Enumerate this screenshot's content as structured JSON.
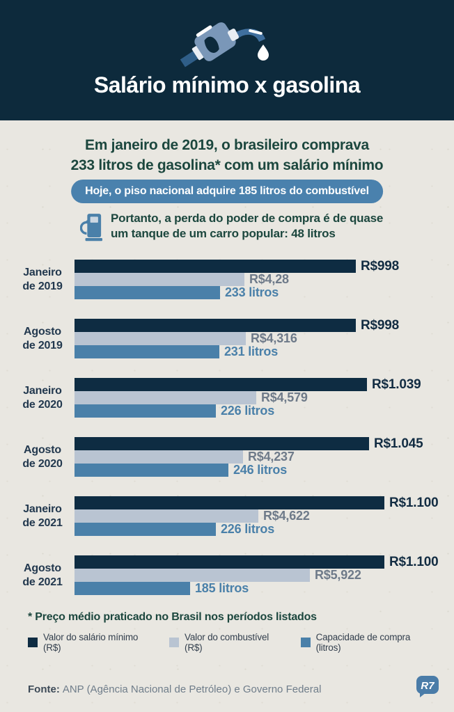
{
  "header": {
    "title": "Salário mínimo x gasolina",
    "icon": "fuel-nozzle-icon"
  },
  "intro": {
    "headline_line1": "Em janeiro de 2019, o brasileiro comprava",
    "headline_line2": "233 litros de gasolina* com um salário mínimo",
    "badge": "Hoje, o piso nacional adquire 185 litros do combustível",
    "note_line1": "Portanto, a perda do poder de compra é de quase",
    "note_line2": "um tanque de um carro popular: 48 litros"
  },
  "chart_data": {
    "type": "bar",
    "orientation": "horizontal",
    "categories": [
      "Janeiro de 2019",
      "Agosto de 2019",
      "Janeiro de 2020",
      "Agosto de 2020",
      "Janeiro de 2021",
      "Agosto de 2021"
    ],
    "category_lines": [
      [
        "Janeiro",
        "de 2019"
      ],
      [
        "Agosto",
        "de 2019"
      ],
      [
        "Janeiro",
        "de 2020"
      ],
      [
        "Agosto",
        "de 2020"
      ],
      [
        "Janeiro",
        "de 2021"
      ],
      [
        "Agosto",
        "de 2021"
      ]
    ],
    "series": [
      {
        "name": "Valor do salário mínimo (R$)",
        "color": "#0e2c42",
        "values": [
          998,
          998,
          1039,
          1045,
          1100,
          1100
        ],
        "labels": [
          "R$998",
          "R$998",
          "R$1.039",
          "R$1.045",
          "R$1.100",
          "R$1.100"
        ]
      },
      {
        "name": "Valor do combustível (R$)",
        "color": "#b9c4d2",
        "values": [
          4.28,
          4.316,
          4.579,
          4.237,
          4.622,
          5.922
        ],
        "labels": [
          "R$4,28",
          "R$4,316",
          "R$4,579",
          "R$4,237",
          "R$4,622",
          "R$5,922"
        ]
      },
      {
        "name": "Capacidade de compra (litros)",
        "color": "#4a80a9",
        "values": [
          233,
          231,
          226,
          246,
          226,
          185
        ],
        "labels": [
          "233 litros",
          "231 litros",
          "226 litros",
          "246 litros",
          "226 litros",
          "185 litros"
        ]
      }
    ],
    "grid": false,
    "legend_position": "bottom"
  },
  "footnote": "* Preço médio praticado no Brasil nos períodos listados",
  "legend": {
    "items": [
      {
        "label": "Valor do salário mínimo (R$)",
        "color": "#0e2c42"
      },
      {
        "label": "Valor do combustível (R$)",
        "color": "#b9c4d2"
      },
      {
        "label": "Capacidade de compra (litros)",
        "color": "#4a80a9"
      }
    ]
  },
  "footer": {
    "source_label": "Fonte:",
    "source_text": "ANP (Agência Nacional de Petróleo) e Governo Federal",
    "logo_text": "R7"
  },
  "colors": {
    "header_bg": "#0d2a3c",
    "body_bg": "#e9e7e1",
    "heading_text": "#1c473e",
    "badge_bg": "#4a81ad",
    "logo_bg": "#4a7ca8"
  }
}
